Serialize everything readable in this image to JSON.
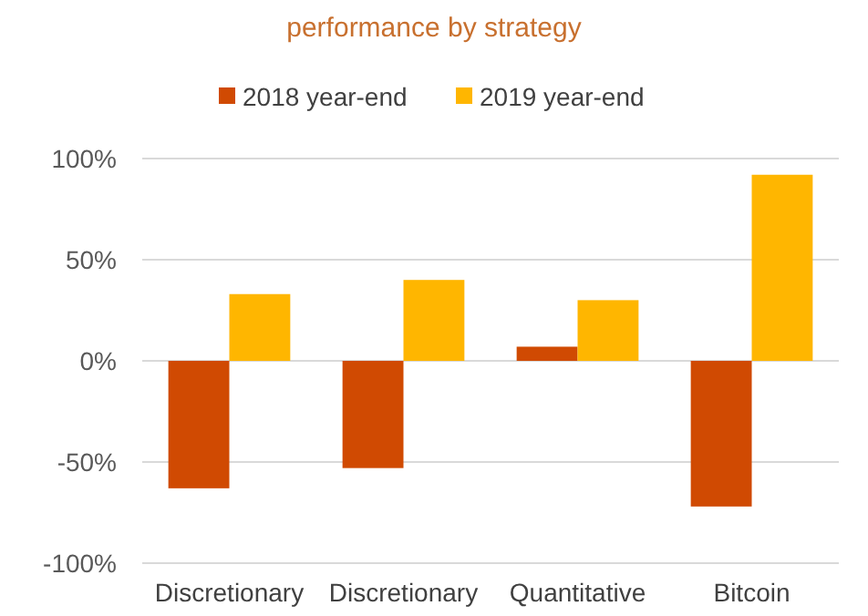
{
  "chart_data": {
    "type": "bar",
    "title": "performance by strategy",
    "categories": [
      "Discretionary",
      "Discretionary",
      "Quantitative",
      "Bitcoin"
    ],
    "series": [
      {
        "name": "2018 year-end",
        "color": "#d04a02",
        "values": [
          -63,
          -53,
          7,
          -72
        ]
      },
      {
        "name": "2019 year-end",
        "color": "#ffb600",
        "values": [
          33,
          40,
          30,
          92
        ]
      }
    ],
    "ylim": [
      -100,
      100
    ],
    "yticks": [
      {
        "value": -100,
        "label": "-100%"
      },
      {
        "value": -50,
        "label": "-50%"
      },
      {
        "value": 0,
        "label": "0%"
      },
      {
        "value": 50,
        "label": "50%"
      },
      {
        "value": 100,
        "label": "100%"
      }
    ],
    "grid": "y",
    "legend": "top"
  }
}
